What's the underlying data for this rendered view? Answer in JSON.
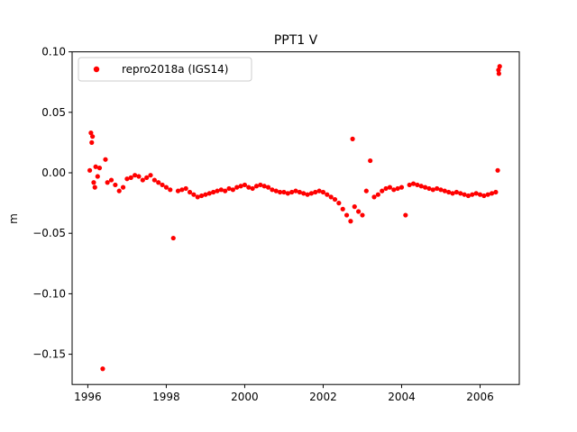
{
  "chart_data": {
    "type": "scatter",
    "title": "PPT1 V",
    "xlabel": "",
    "ylabel": "m",
    "xlim": [
      1995.6,
      2007.0
    ],
    "ylim": [
      -0.175,
      0.1
    ],
    "xticks": [
      1996,
      1998,
      2000,
      2002,
      2004,
      2006
    ],
    "xtick_labels": [
      "1996",
      "1998",
      "2000",
      "2002",
      "2004",
      "2006"
    ],
    "yticks": [
      0.1,
      0.05,
      0.0,
      -0.05,
      -0.1,
      -0.15
    ],
    "ytick_labels": [
      "0.10",
      "0.05",
      "0.00",
      "−0.05",
      "−0.10",
      "−0.15"
    ],
    "legend_position": "top-left",
    "grid": false,
    "series": [
      {
        "name": "repro2018a (IGS14)",
        "color": "#ff0000",
        "marker": "circle",
        "x": [
          1996.05,
          1996.08,
          1996.1,
          1996.12,
          1996.15,
          1996.18,
          1996.2,
          1996.25,
          1996.3,
          1996.38,
          1996.45,
          1996.5,
          1996.6,
          1996.7,
          1996.8,
          1996.9,
          1997.0,
          1997.1,
          1997.2,
          1997.3,
          1997.4,
          1997.5,
          1997.6,
          1997.7,
          1997.8,
          1997.9,
          1998.0,
          1998.1,
          1998.18,
          1998.3,
          1998.4,
          1998.5,
          1998.6,
          1998.7,
          1998.8,
          1998.9,
          1999.0,
          1999.1,
          1999.2,
          1999.3,
          1999.4,
          1999.5,
          1999.6,
          1999.7,
          1999.8,
          1999.9,
          2000.0,
          2000.1,
          2000.2,
          2000.3,
          2000.4,
          2000.5,
          2000.6,
          2000.7,
          2000.8,
          2000.9,
          2001.0,
          2001.1,
          2001.2,
          2001.3,
          2001.4,
          2001.5,
          2001.6,
          2001.7,
          2001.8,
          2001.9,
          2002.0,
          2002.1,
          2002.2,
          2002.3,
          2002.4,
          2002.5,
          2002.6,
          2002.7,
          2002.75,
          2002.8,
          2002.9,
          2003.0,
          2003.1,
          2003.2,
          2003.3,
          2003.4,
          2003.5,
          2003.6,
          2003.7,
          2003.8,
          2003.9,
          2004.0,
          2004.1,
          2004.2,
          2004.3,
          2004.4,
          2004.5,
          2004.6,
          2004.7,
          2004.8,
          2004.9,
          2005.0,
          2005.1,
          2005.2,
          2005.3,
          2005.4,
          2005.5,
          2005.6,
          2005.7,
          2005.8,
          2005.9,
          2006.0,
          2006.1,
          2006.2,
          2006.3,
          2006.4,
          2006.45,
          2006.47,
          2006.48,
          2006.5
        ],
        "y": [
          0.002,
          0.033,
          0.025,
          0.03,
          -0.008,
          -0.012,
          0.005,
          -0.003,
          0.004,
          -0.162,
          0.011,
          -0.008,
          -0.006,
          -0.01,
          -0.015,
          -0.012,
          -0.005,
          -0.004,
          -0.002,
          -0.003,
          -0.006,
          -0.004,
          -0.002,
          -0.006,
          -0.008,
          -0.01,
          -0.012,
          -0.014,
          -0.054,
          -0.015,
          -0.014,
          -0.013,
          -0.016,
          -0.018,
          -0.02,
          -0.019,
          -0.018,
          -0.017,
          -0.016,
          -0.015,
          -0.014,
          -0.015,
          -0.013,
          -0.014,
          -0.012,
          -0.011,
          -0.01,
          -0.012,
          -0.013,
          -0.011,
          -0.01,
          -0.011,
          -0.012,
          -0.014,
          -0.015,
          -0.016,
          -0.016,
          -0.017,
          -0.016,
          -0.015,
          -0.016,
          -0.017,
          -0.018,
          -0.017,
          -0.016,
          -0.015,
          -0.016,
          -0.018,
          -0.02,
          -0.022,
          -0.025,
          -0.03,
          -0.035,
          -0.04,
          0.028,
          -0.028,
          -0.032,
          -0.035,
          -0.015,
          0.01,
          -0.02,
          -0.018,
          -0.015,
          -0.013,
          -0.012,
          -0.014,
          -0.013,
          -0.012,
          -0.035,
          -0.01,
          -0.009,
          -0.01,
          -0.011,
          -0.012,
          -0.013,
          -0.014,
          -0.013,
          -0.014,
          -0.015,
          -0.016,
          -0.017,
          -0.016,
          -0.017,
          -0.018,
          -0.019,
          -0.018,
          -0.017,
          -0.018,
          -0.019,
          -0.018,
          -0.017,
          -0.016,
          0.002,
          0.085,
          0.082,
          0.088
        ]
      }
    ]
  }
}
